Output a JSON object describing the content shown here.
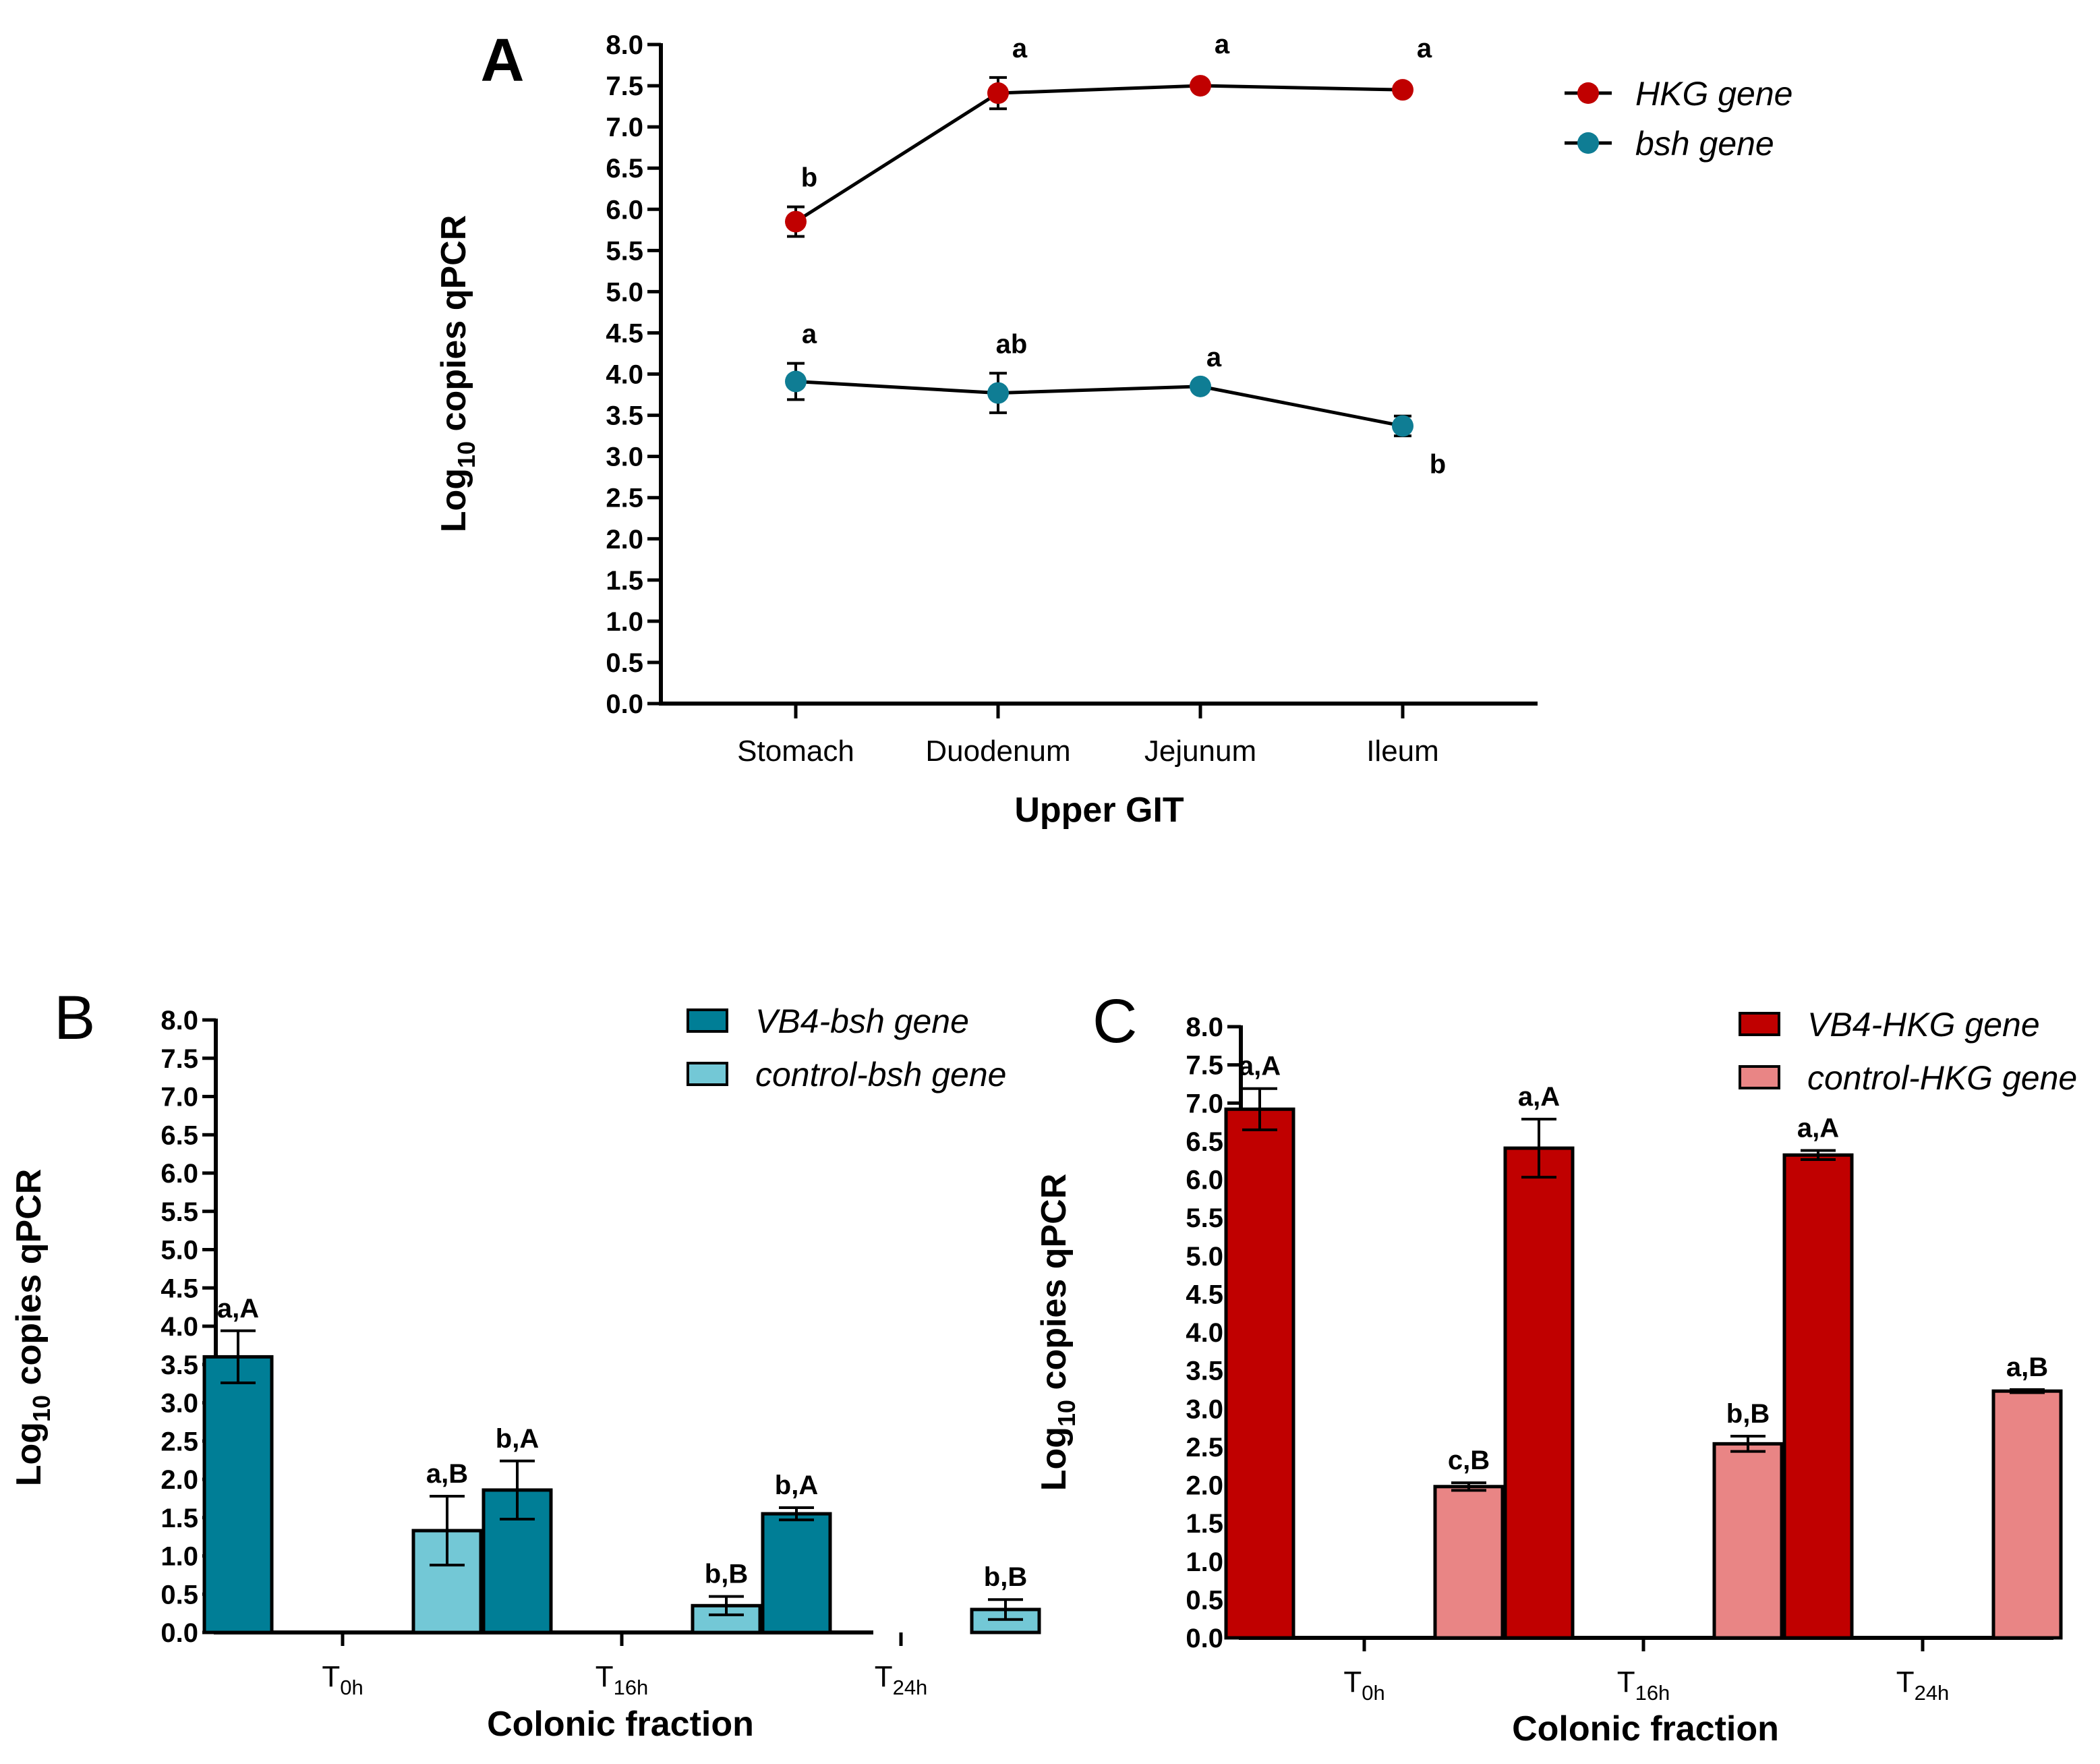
{
  "chart_data": [
    {
      "panel": "A",
      "type": "line",
      "xlabel": "Upper GIT",
      "ylabel_main": "Log",
      "ylabel_sub": "10",
      "ylabel_rest": " copies qPCR",
      "ylim": [
        0,
        8
      ],
      "ytick_step": 0.5,
      "categories": [
        "Stomach",
        "Duodenum",
        "Jejunum",
        "Ileum"
      ],
      "legend_position": "top-right",
      "series": [
        {
          "name": "HKG gene",
          "color": "#c00000",
          "values": [
            5.85,
            7.41,
            7.5,
            7.45
          ],
          "errors": [
            0.18,
            0.19,
            0.0,
            0.0
          ],
          "letters": [
            "b",
            "a",
            "a",
            "a"
          ]
        },
        {
          "name": "bsh gene",
          "color": "#0f7d94",
          "values": [
            3.91,
            3.77,
            3.85,
            3.37
          ],
          "errors": [
            0.22,
            0.24,
            0.0,
            0.12
          ],
          "letters": [
            "a",
            "ab",
            "a",
            "b"
          ]
        }
      ]
    },
    {
      "panel": "B",
      "type": "bar",
      "xlabel": "Colonic fraction",
      "ylabel_main": "Log",
      "ylabel_sub": "10",
      "ylabel_rest": " copies qPCR",
      "ylim": [
        0,
        8
      ],
      "ytick_step": 0.5,
      "categories": [
        {
          "main": "T",
          "sub": "0h"
        },
        {
          "main": "T",
          "sub": "16h"
        },
        {
          "main": "T",
          "sub": "24h"
        }
      ],
      "legend_position": "top-right",
      "series": [
        {
          "name": "VB4-bsh gene",
          "color": "#007e96",
          "values": [
            3.6,
            1.86,
            1.55
          ],
          "errors": [
            0.34,
            0.38,
            0.08
          ],
          "letters": [
            "a,A",
            "b,A",
            "b,A"
          ]
        },
        {
          "name": "control-bsh gene",
          "color": "#73c8d6",
          "values": [
            1.33,
            0.35,
            0.3
          ],
          "errors": [
            0.45,
            0.12,
            0.13
          ],
          "letters": [
            "a,B",
            "b,B",
            "b,B"
          ]
        }
      ]
    },
    {
      "panel": "C",
      "type": "bar",
      "xlabel": "Colonic fraction",
      "ylabel_main": "Log",
      "ylabel_sub": "10",
      "ylabel_rest": " copies qPCR",
      "ylim": [
        0,
        8
      ],
      "ytick_step": 0.5,
      "categories": [
        {
          "main": "T",
          "sub": "0h"
        },
        {
          "main": "T",
          "sub": "16h"
        },
        {
          "main": "T",
          "sub": "24h"
        }
      ],
      "legend_position": "top-right",
      "series": [
        {
          "name": "VB4-HKG gene",
          "color": "#c00000",
          "values": [
            6.92,
            6.41,
            6.32
          ],
          "errors": [
            0.27,
            0.38,
            0.06
          ],
          "letters": [
            "a,A",
            "a,A",
            "a,A"
          ]
        },
        {
          "name": "control-HKG gene",
          "color": "#e98585",
          "values": [
            1.98,
            2.54,
            3.23
          ],
          "errors": [
            0.05,
            0.1,
            0.02
          ],
          "letters": [
            "c,B",
            "b,B",
            "a,B"
          ]
        }
      ]
    }
  ]
}
